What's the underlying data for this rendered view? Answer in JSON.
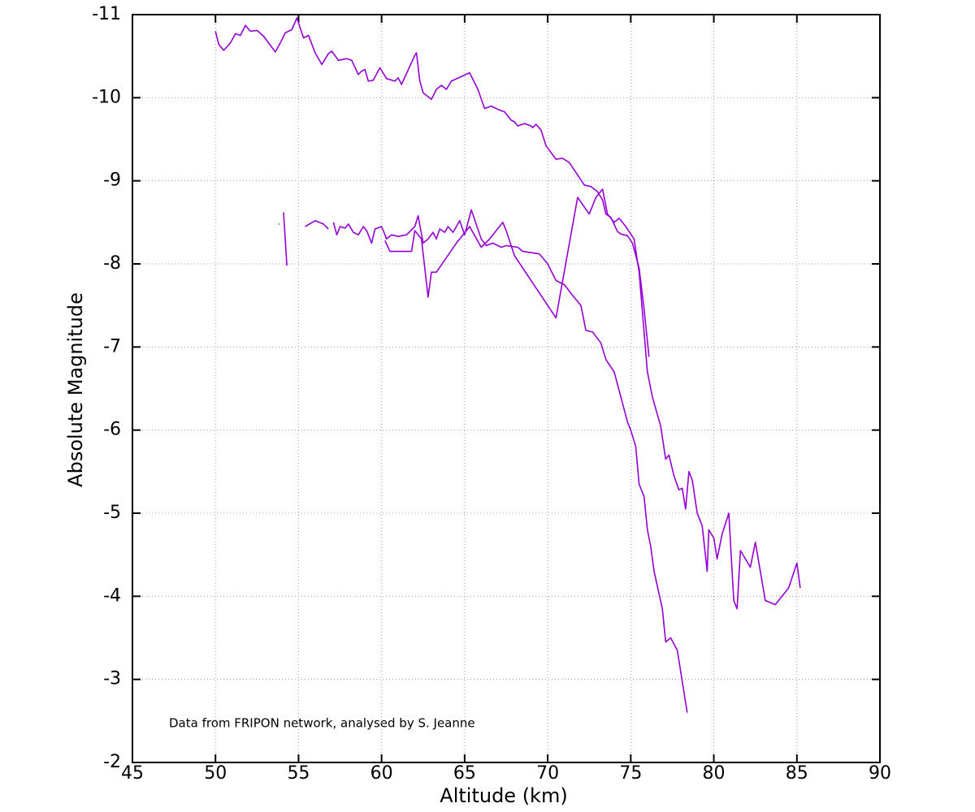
{
  "chart_data": {
    "type": "line",
    "xlabel": "Altitude (km)",
    "ylabel": "Absolute Magnitude",
    "annotation": "Data from FRIPON network, analysed by S. Jeanne",
    "xlim": [
      45,
      90
    ],
    "xticks": [
      45,
      50,
      55,
      60,
      65,
      70,
      75,
      80,
      85,
      90
    ],
    "ylim": [
      -2,
      -11
    ],
    "yticks": [
      -2,
      -3,
      -4,
      -5,
      -6,
      -7,
      -8,
      -9,
      -10,
      -11
    ],
    "grid": true,
    "series": [
      {
        "color": "#9400d3",
        "x": [
          50,
          50.2,
          50.5,
          50.9,
          51.2,
          51.5,
          51.8,
          52.1,
          52.5,
          52.9,
          53.6,
          53.9,
          54.2,
          54.6,
          54.9,
          55,
          55.3,
          55.6,
          56,
          56.4,
          56.8,
          57,
          57.4,
          57.9,
          58.2,
          58.6,
          58.8,
          59,
          59.2,
          59.5,
          59.9,
          60.3,
          60.8,
          61,
          61.2,
          62,
          62.1,
          62.3,
          62.5,
          63,
          63.3,
          63.6,
          63.9,
          64.2,
          65.3,
          65.8,
          66.2,
          66.6,
          67,
          67.4,
          67.8,
          68,
          68.2,
          68.6,
          69,
          69.1,
          69.3,
          69.6,
          69.9,
          70.5,
          70.9,
          71.3,
          72.2,
          72.6,
          73,
          73.3,
          73.5,
          73.8,
          74.2,
          74.4,
          74.8,
          75.1,
          75.5,
          75.8,
          76.1
        ],
        "values": [
          -10.8,
          -10.64,
          -10.57,
          -10.66,
          -10.77,
          -10.75,
          -10.87,
          -10.8,
          -10.81,
          -10.74,
          -10.55,
          -10.66,
          -10.78,
          -10.82,
          -10.96,
          -10.9,
          -10.72,
          -10.75,
          -10.54,
          -10.4,
          -10.53,
          -10.56,
          -10.45,
          -10.47,
          -10.45,
          -10.28,
          -10.32,
          -10.34,
          -10.2,
          -10.21,
          -10.36,
          -10.23,
          -10.2,
          -10.24,
          -10.16,
          -10.51,
          -10.54,
          -10.2,
          -10.06,
          -9.98,
          -10.1,
          -10.15,
          -10.1,
          -10.2,
          -10.3,
          -10.1,
          -9.87,
          -9.9,
          -9.86,
          -9.83,
          -9.73,
          -9.71,
          -9.66,
          -9.69,
          -9.66,
          -9.64,
          -9.68,
          -9.61,
          -9.42,
          -9.26,
          -9.27,
          -9.22,
          -8.95,
          -8.93,
          -8.87,
          -8.77,
          -8.6,
          -8.56,
          -8.39,
          -8.36,
          -8.34,
          -8.25,
          -7.95,
          -7.46,
          -6.88
        ]
      },
      {
        "color": "#9400d3",
        "x": [
          53.8,
          null,
          54.1,
          54.3,
          null,
          55.4,
          56,
          56.5,
          56.8,
          null,
          57.1,
          57.3,
          57.5,
          57.8,
          58,
          58.3,
          58.6,
          58.9,
          59.1,
          59.4,
          59.6,
          60,
          60.3,
          60.6,
          61,
          61.5,
          62,
          62.2,
          62.5,
          62.8,
          63.1,
          63.3,
          63.5,
          63.8,
          64,
          64.3,
          64.7,
          65,
          65.4,
          66,
          66.3,
          66.7,
          67.2,
          67.5,
          68.2,
          68.5,
          69.5,
          70,
          70.5,
          71,
          71.5,
          72,
          72.3,
          72.7,
          73.2,
          73.5,
          74,
          74.4,
          74.8,
          75,
          75.3,
          75.5,
          75.8,
          76,
          76.2,
          76.4,
          76.9,
          77.1,
          77.4,
          77.8,
          78.4
        ],
        "values": [
          -8.48,
          null,
          -8.62,
          -7.98,
          null,
          -8.45,
          -8.52,
          -8.48,
          -8.42,
          null,
          -8.5,
          -8.35,
          -8.45,
          -8.43,
          -8.48,
          -8.38,
          -8.35,
          -8.45,
          -8.4,
          -8.25,
          -8.42,
          -8.45,
          -8.3,
          -8.35,
          -8.33,
          -8.35,
          -8.45,
          -8.58,
          -8.25,
          -8.3,
          -8.38,
          -8.3,
          -8.42,
          -8.38,
          -8.45,
          -8.38,
          -8.52,
          -8.35,
          -8.65,
          -8.3,
          -8.22,
          -8.25,
          -8.2,
          -8.22,
          -8.2,
          -8.15,
          -8.12,
          -8.0,
          -7.8,
          -7.75,
          -7.62,
          -7.5,
          -7.2,
          -7.18,
          -7.05,
          -6.85,
          -6.7,
          -6.4,
          -6.1,
          -6.0,
          -5.8,
          -5.35,
          -5.2,
          -4.8,
          -4.6,
          -4.3,
          -3.85,
          -3.45,
          -3.5,
          -3.35,
          -2.6
        ]
      },
      {
        "color": "#9400d3",
        "x": [
          60.2,
          60.5,
          61,
          61.8,
          62,
          62.4,
          62.8,
          63,
          63.3,
          64.5,
          65.3,
          66,
          66.5,
          67.3,
          67.5,
          68,
          70.5,
          71.8,
          72.5,
          72.9,
          73.3,
          73.6,
          74,
          74.3,
          74.7,
          75.2,
          75.5,
          76,
          76.3,
          76.8,
          77.1,
          77.3,
          77.6,
          77.9,
          78.1,
          78.3,
          78.5,
          78.7,
          79,
          79.3,
          79.6,
          79.7,
          80,
          80.2,
          80.5,
          80.9,
          81.2,
          81.4,
          81.6,
          82.2,
          82.5,
          83.1,
          83.7,
          84.5,
          85,
          85.2
        ],
        "values": [
          -8.28,
          -8.15,
          -8.15,
          -8.15,
          -8.4,
          -8.3,
          -7.6,
          -7.9,
          -7.9,
          -8.25,
          -8.45,
          -8.2,
          -8.3,
          -8.5,
          -8.4,
          -8.1,
          -7.35,
          -8.8,
          -8.6,
          -8.8,
          -8.9,
          -8.6,
          -8.5,
          -8.55,
          -8.45,
          -8.3,
          -7.9,
          -6.7,
          -6.4,
          -6.05,
          -5.65,
          -5.7,
          -5.45,
          -5.28,
          -5.3,
          -5.05,
          -5.5,
          -5.4,
          -5.0,
          -4.85,
          -4.3,
          -4.8,
          -4.7,
          -4.45,
          -4.75,
          -5.0,
          -3.95,
          -3.85,
          -4.55,
          -4.35,
          -4.65,
          -3.95,
          -3.9,
          -4.1,
          -4.4,
          -4.1
        ]
      }
    ]
  }
}
